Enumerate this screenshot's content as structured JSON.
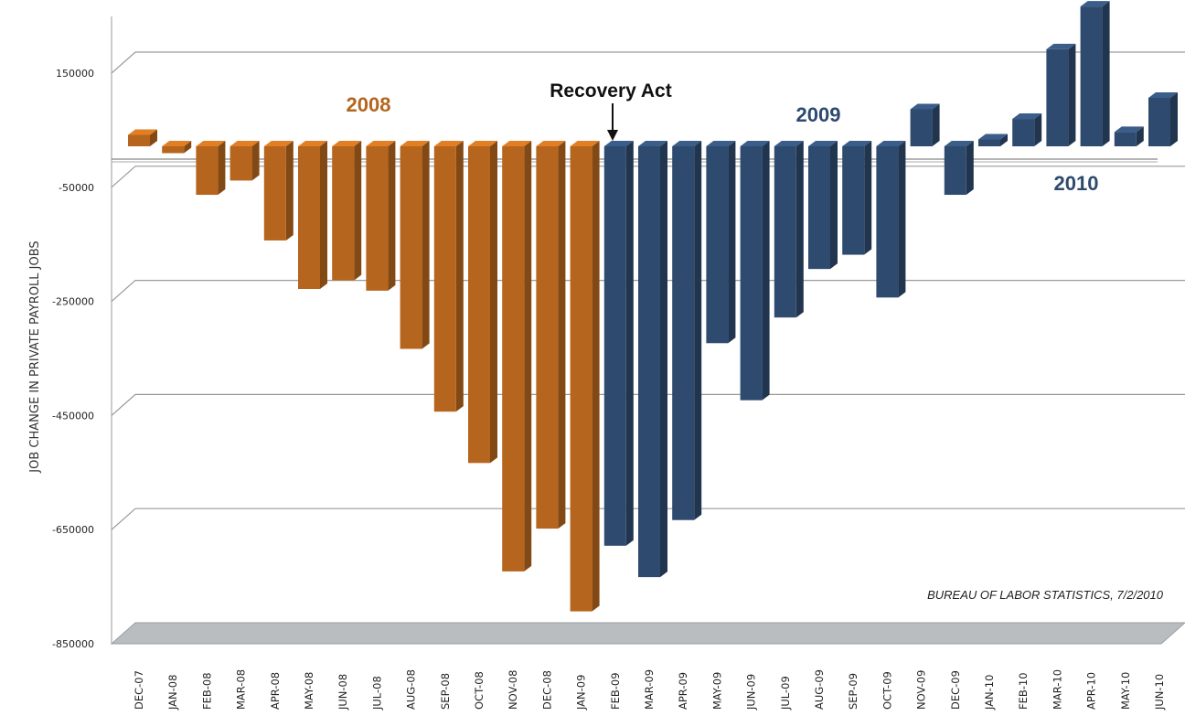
{
  "chart_data": {
    "type": "bar",
    "ylabel": "JOB CHANGE IN PRIVATE PAYROLL JOBS",
    "ylim": [
      -850000,
      150000
    ],
    "yticks": [
      150000,
      -50000,
      -250000,
      -450000,
      -650000,
      -850000
    ],
    "categories": [
      "DEC-07",
      "JAN-08",
      "FEB-08",
      "MAR-08",
      "APR-08",
      "MAY-08",
      "JUN-08",
      "JUL-08",
      "AUG-08",
      "SEP-08",
      "OCT-08",
      "NOV-08",
      "DEC-08",
      "JAN-09",
      "FEB-09",
      "MAR-09",
      "APR-09",
      "MAY-09",
      "JUN-09",
      "JUL-09",
      "AUG-09",
      "SEP-09",
      "OCT-09",
      "NOV-09",
      "DEC-09",
      "JAN-10",
      "FEB-10",
      "MAR-10",
      "APR-10",
      "MAY-10",
      "JUN-10"
    ],
    "values": [
      20000,
      -12000,
      -85000,
      -60000,
      -165000,
      -250000,
      -235000,
      -253000,
      -355000,
      -465000,
      -555000,
      -745000,
      -670000,
      -815000,
      -700000,
      -755000,
      -655000,
      -345000,
      -445000,
      -300000,
      -215000,
      -190000,
      -265000,
      65000,
      -85000,
      12000,
      48000,
      170000,
      245000,
      25000,
      85000
    ],
    "series": [
      {
        "name": "2008",
        "color": "#b5651d",
        "range": [
          0,
          13
        ]
      },
      {
        "name": "2009",
        "color": "#2e4a6e",
        "range": [
          14,
          23
        ]
      },
      {
        "name": "2010",
        "color": "#2e4a6e",
        "range": [
          24,
          30
        ]
      }
    ],
    "annotations": {
      "recovery_act": "Recovery Act",
      "source": "BUREAU OF LABOR STATISTICS, 7/2/2010"
    },
    "grid": true,
    "legend": "none"
  }
}
